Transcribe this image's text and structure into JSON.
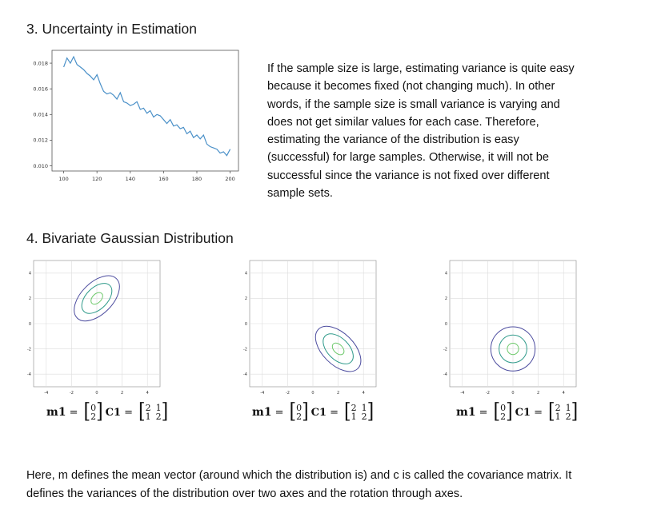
{
  "section3": {
    "title": "3. Uncertainty in Estimation",
    "paragraph_lines": [
      "If the sample size is large, estimating variance is quite easy",
      "because it becomes fixed (not changing much). In other",
      "words, if the sample size is small variance is varying and",
      "does not get similar values for each case. Therefore,",
      "estimating the variance of the distribution is easy",
      "(successful) for large samples. Otherwise, it will not be",
      "successful since the variance is not fixed over different",
      "sample sets."
    ]
  },
  "section4": {
    "title": "4. Bivariate Gaussian Distribution",
    "formula": {
      "m_label": "m1",
      "c_label": "C1",
      "equals": "=",
      "m_values": [
        "0",
        "2"
      ],
      "c_values": [
        [
          "2",
          "1"
        ],
        [
          "1",
          "2"
        ]
      ]
    }
  },
  "bottom_text_lines": [
    "Here, m defines the mean vector (around which the distribution is) and c is called the covariance matrix. It",
    "defines the variances of the distribution over two axes and the rotation through axes."
  ],
  "chart_data": [
    {
      "type": "line",
      "title": "",
      "xlabel": "",
      "ylabel": "",
      "xlim": [
        93,
        205
      ],
      "ylim": [
        0.0096,
        0.019
      ],
      "xticks": [
        100,
        120,
        140,
        160,
        180,
        200
      ],
      "yticks": [
        0.01,
        0.012,
        0.014,
        0.016,
        0.018
      ],
      "ytick_labels": [
        "0.010",
        "0.012",
        "0.014",
        "0.016",
        "0.018"
      ],
      "grid": false,
      "color": "#4a90c8",
      "x": [
        100,
        102,
        104,
        106,
        108,
        110,
        112,
        114,
        116,
        118,
        120,
        122,
        124,
        126,
        128,
        130,
        132,
        134,
        136,
        138,
        140,
        142,
        144,
        146,
        148,
        150,
        152,
        154,
        156,
        158,
        160,
        162,
        164,
        166,
        168,
        170,
        172,
        174,
        176,
        178,
        180,
        182,
        184,
        186,
        188,
        190,
        192,
        194,
        196,
        198,
        200
      ],
      "y": [
        0.0177,
        0.0184,
        0.018,
        0.0185,
        0.0179,
        0.0177,
        0.0175,
        0.0172,
        0.017,
        0.0167,
        0.0171,
        0.0164,
        0.0158,
        0.0156,
        0.0157,
        0.0155,
        0.0152,
        0.0157,
        0.015,
        0.0149,
        0.0147,
        0.0148,
        0.015,
        0.0144,
        0.0145,
        0.0141,
        0.0143,
        0.0138,
        0.014,
        0.0139,
        0.0136,
        0.0133,
        0.0136,
        0.0131,
        0.0132,
        0.0129,
        0.013,
        0.0125,
        0.0127,
        0.0122,
        0.0124,
        0.0121,
        0.0124,
        0.0117,
        0.0115,
        0.0114,
        0.0113,
        0.011,
        0.0111,
        0.0108,
        0.0113
      ]
    },
    {
      "type": "contour",
      "ticks": [
        -4,
        -2,
        0,
        2,
        4
      ],
      "tick_labels": [
        "-4",
        "-2",
        "0",
        "2",
        "4"
      ],
      "xlim": [
        -5,
        5
      ],
      "ylim": [
        -5,
        5
      ],
      "grid": true,
      "plots": [
        {
          "center": [
            0,
            2
          ],
          "angle": -45,
          "rings": [
            [
              2.2,
              1.25
            ],
            [
              1.45,
              0.85
            ],
            [
              0.55,
              0.35
            ]
          ],
          "ring_colors": [
            "#4b4b9e",
            "#2f9a8a",
            "#6cc86a"
          ]
        },
        {
          "center": [
            2,
            -2
          ],
          "angle": 45,
          "rings": [
            [
              2.2,
              1.25
            ],
            [
              1.45,
              0.85
            ],
            [
              0.55,
              0.35
            ]
          ],
          "ring_colors": [
            "#4b4b9e",
            "#2f9a8a",
            "#6cc86a"
          ]
        },
        {
          "center": [
            0,
            -2
          ],
          "angle": 0,
          "rings": [
            [
              1.75,
              1.75
            ],
            [
              1.1,
              1.1
            ],
            [
              0.45,
              0.45
            ]
          ],
          "ring_colors": [
            "#4b4b9e",
            "#2f9a8a",
            "#6cc86a"
          ]
        }
      ]
    }
  ]
}
